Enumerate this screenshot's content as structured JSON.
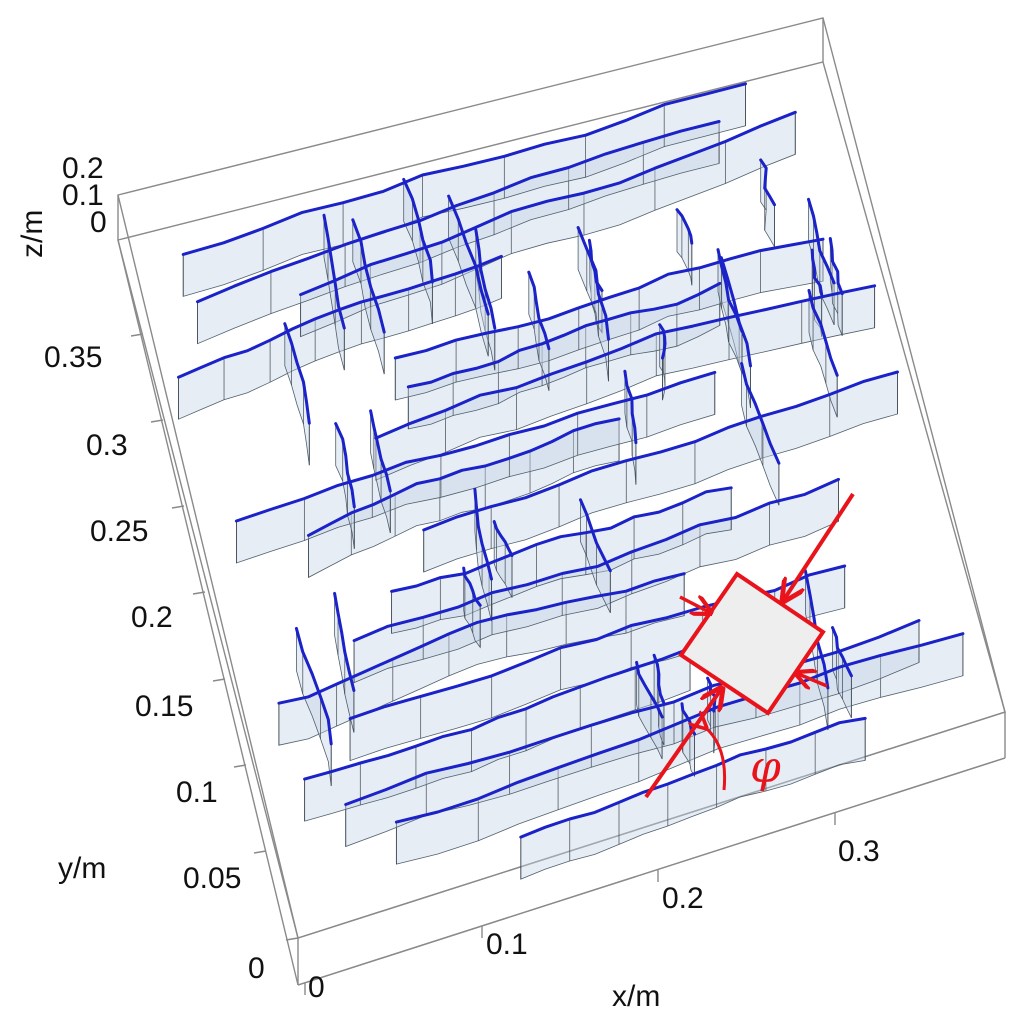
{
  "figure": {
    "axes": {
      "x": {
        "title": "x/m",
        "ticks": [
          "0",
          "0.1",
          "0.2",
          "0.3"
        ]
      },
      "y": {
        "title": "y/m",
        "ticks": [
          "0",
          "0.05",
          "0.1",
          "0.15",
          "0.2",
          "0.25",
          "0.3",
          "0.35"
        ]
      },
      "z": {
        "title": "z/m",
        "ticks": [
          "0",
          "0.1",
          "0.2"
        ]
      }
    },
    "annotation": {
      "angle_symbol": "φ",
      "color": "#e8131b",
      "specimen_fill": "#eeeeee"
    },
    "fracture_color": "#1a22c8",
    "wall_color": "#c3d2e6"
  }
}
